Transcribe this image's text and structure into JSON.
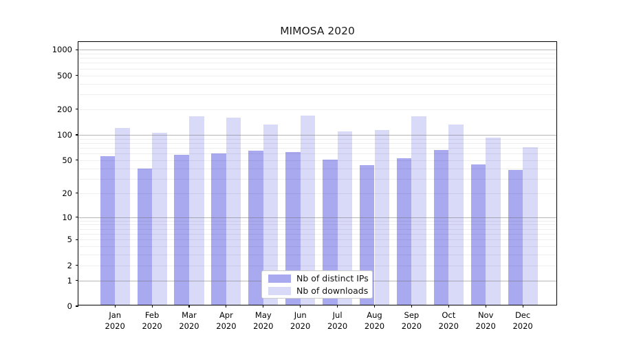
{
  "title": "MIMOSA 2020",
  "chart_data": {
    "type": "bar",
    "title": "MIMOSA 2020",
    "categories": [
      "Jan",
      "Feb",
      "Mar",
      "Apr",
      "May",
      "Jun",
      "Jul",
      "Aug",
      "Sep",
      "Oct",
      "Nov",
      "Dec"
    ],
    "category_year": "2020",
    "series": [
      {
        "name": "Nb of distinct IPs",
        "color": "#a9a9f0",
        "values": [
          54,
          38,
          56,
          58,
          62,
          60,
          49,
          42,
          51,
          64,
          43,
          37
        ]
      },
      {
        "name": "Nb of downloads",
        "color": "#d9d9f8",
        "values": [
          116,
          101,
          159,
          154,
          128,
          163,
          106,
          110,
          161,
          128,
          90,
          69
        ]
      }
    ],
    "xlabel": "",
    "ylabel": "",
    "yscale": "symlog",
    "yticks": [
      1000,
      500,
      200,
      100,
      50,
      20,
      10,
      5,
      2,
      1,
      0
    ],
    "ylim": [
      0,
      1232
    ],
    "grid": "on",
    "legend_position": "lower center"
  },
  "colors": {
    "distinct_ips": "#a9a9f0",
    "downloads": "#d9d9f8",
    "decade_gridline": "#b5b5b5",
    "minor_gridline": "#e8e8e8",
    "spine": "#000000",
    "background": "#ffffff"
  }
}
